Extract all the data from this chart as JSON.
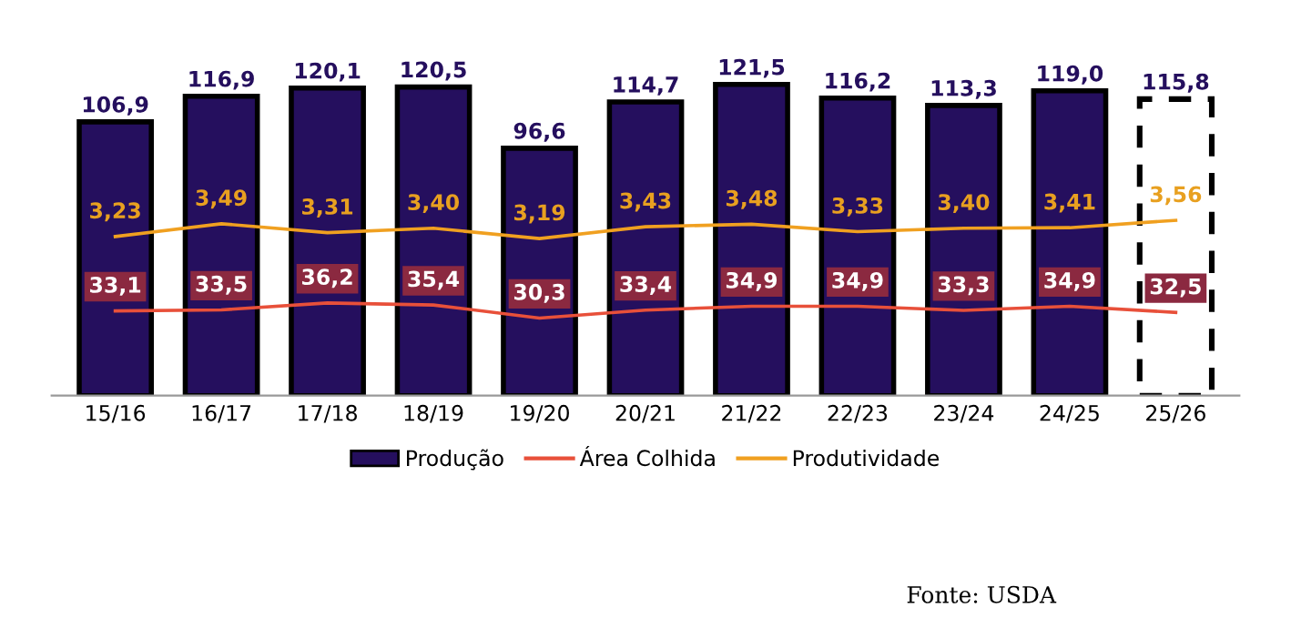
{
  "chart_data": {
    "type": "bar",
    "categories": [
      "15/16",
      "16/17",
      "17/18",
      "18/19",
      "19/20",
      "20/21",
      "21/22",
      "22/23",
      "23/24",
      "24/25",
      "25/26"
    ],
    "series": [
      {
        "name": "Produção",
        "color": "#250f5e",
        "values": [
          106.9,
          116.9,
          120.1,
          120.5,
          96.6,
          114.7,
          121.5,
          116.2,
          113.3,
          119.0,
          null
        ],
        "value_labels": [
          "106,9",
          "116,9",
          "120,1",
          "120,5",
          "96,6",
          "114,7",
          "121,5",
          "116,2",
          "113,3",
          "119,0",
          null
        ]
      },
      {
        "color": "#ffffff",
        "line_style": "dashed",
        "values": [
          null,
          null,
          null,
          null,
          null,
          null,
          null,
          null,
          null,
          null,
          115.8
        ],
        "value_labels": [
          null,
          null,
          null,
          null,
          null,
          null,
          null,
          null,
          null,
          null,
          "115,8"
        ]
      },
      {
        "name": "Área Colhida",
        "type": "line",
        "color": "#e8503a",
        "values": [
          33.1,
          33.5,
          36.2,
          35.4,
          30.3,
          33.4,
          34.9,
          34.9,
          33.3,
          34.9,
          32.5
        ],
        "value_labels": [
          "33,1",
          "33,5",
          "36,2",
          "35,4",
          "30,3",
          "33,4",
          "34,9",
          "34,9",
          "33,3",
          "34,9",
          "32,5"
        ]
      },
      {
        "name": "Produtividade",
        "type": "line",
        "axis": "y2",
        "color": "#f0a020",
        "values": [
          3.23,
          3.49,
          3.31,
          3.4,
          3.19,
          3.43,
          3.48,
          3.33,
          3.4,
          3.41,
          3.56
        ],
        "value_labels": [
          "3,23",
          "3,49",
          "3,31",
          "3,40",
          "3,19",
          "3,43",
          "3,48",
          "3,33",
          "3,40",
          "3,41",
          "3,56"
        ]
      }
    ],
    "tick_labels": "x",
    "legend": "bottom",
    "grid": false,
    "annotations": [
      "Fonte: USDA"
    ]
  }
}
